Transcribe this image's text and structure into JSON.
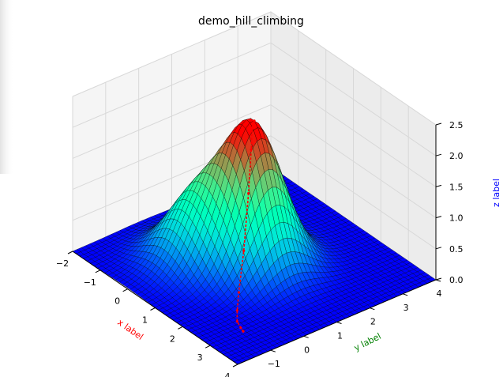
{
  "chart_data": {
    "type": "surface",
    "title": "demo_hill_climbing",
    "xlabel": "x label",
    "ylabel": "y label",
    "zlabel": "z label",
    "xlim": [
      -2,
      4
    ],
    "ylim": [
      -2,
      4
    ],
    "zlim": [
      0,
      2.5
    ],
    "x_ticks": [
      "−2",
      "−1",
      "0",
      "1",
      "2",
      "3",
      "4"
    ],
    "y_ticks": [
      "−1",
      "0",
      "1",
      "2",
      "3",
      "4"
    ],
    "z_ticks": [
      "0.0",
      "0.5",
      "1.0",
      "1.5",
      "2.0",
      "2.5"
    ],
    "surface_peaks": [
      {
        "x": 0.0,
        "y": 0.0,
        "height": 1.0
      },
      {
        "x": 1.0,
        "y": 1.0,
        "height": 2.2
      }
    ],
    "path": {
      "color": "#ff0000",
      "points": [
        {
          "x": 3.0,
          "y": -1.0
        },
        {
          "x": 2.85,
          "y": -0.95
        },
        {
          "x": 2.6,
          "y": -0.85
        },
        {
          "x": 2.3,
          "y": -0.6
        },
        {
          "x": 2.0,
          "y": -0.3
        },
        {
          "x": 1.7,
          "y": 0.1
        },
        {
          "x": 1.45,
          "y": 0.45
        },
        {
          "x": 1.25,
          "y": 0.7
        },
        {
          "x": 1.1,
          "y": 0.85
        },
        {
          "x": 1.0,
          "y": 1.0
        }
      ]
    },
    "colors": {
      "xlabel": "#ff0000",
      "ylabel": "#008000",
      "zlabel": "#0000ff",
      "colormap": "rainbow"
    },
    "grid": true
  }
}
